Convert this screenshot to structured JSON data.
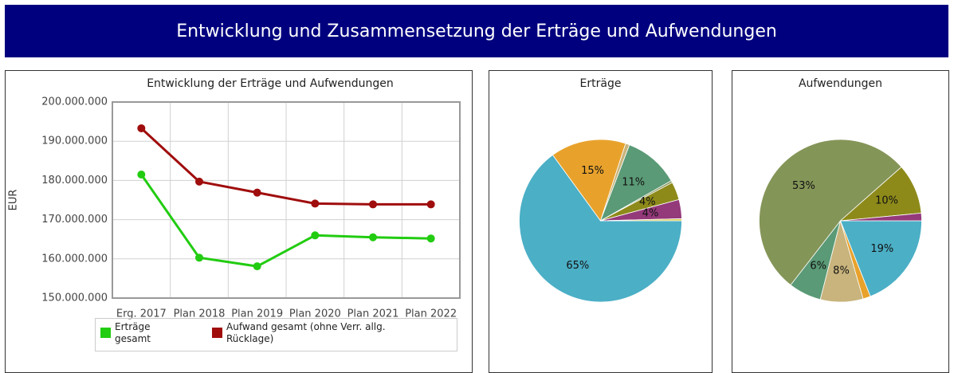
{
  "header": {
    "title": "Entwicklung und Zusammensetzung der Erträge und Aufwendungen"
  },
  "chart_data": [
    {
      "type": "line",
      "title": "Entwicklung der Erträge und Aufwendungen",
      "y_label": "EUR",
      "categories": [
        "Erg. 2017",
        "Plan 2018",
        "Plan 2019",
        "Plan 2020",
        "Plan 2021",
        "Plan 2022"
      ],
      "series": [
        {
          "name": "Erträge gesamt",
          "color": "#22cc11",
          "values": [
            181500000,
            160300000,
            158100000,
            166000000,
            165500000,
            165200000
          ]
        },
        {
          "name": "Aufwand gesamt (ohne Verr. allg. Rücklage)",
          "color": "#a00d0d",
          "values": [
            193300000,
            179700000,
            176900000,
            174100000,
            173900000,
            173900000
          ]
        }
      ],
      "ylim": [
        150000000,
        200000000
      ],
      "yticks": [
        {
          "value": 150000000,
          "label": "150.000.000"
        },
        {
          "value": 160000000,
          "label": "160.000.000"
        },
        {
          "value": 170000000,
          "label": "170.000.000"
        },
        {
          "value": 180000000,
          "label": "180.000.000"
        },
        {
          "value": 190000000,
          "label": "190.000.000"
        },
        {
          "value": 200000000,
          "label": "200.000.000"
        }
      ],
      "grid": true
    },
    {
      "type": "pie",
      "title": "Erträge",
      "values": [
        65,
        15,
        0.8,
        11,
        0.4,
        3.6,
        3.8,
        0.4
      ],
      "value_labels": [
        "65%",
        "15%",
        null,
        "11%",
        null,
        "4%",
        "4%",
        null
      ],
      "colors": [
        "#4bafc6",
        "#e8a22c",
        "#c8b47c",
        "#5a9a76",
        "#849558",
        "#8d8a1a",
        "#94397a",
        "#d8c84a"
      ]
    },
    {
      "type": "pie",
      "title": "Aufwendungen",
      "values": [
        19,
        1.5,
        8.5,
        6.5,
        53,
        10,
        1.5
      ],
      "value_labels": [
        "19%",
        null,
        "8%",
        "6%",
        "53%",
        "10%",
        null
      ],
      "colors": [
        "#4bafc6",
        "#e8a22c",
        "#c8b47c",
        "#5a9a76",
        "#849558",
        "#8d8a1a",
        "#94397a"
      ]
    }
  ]
}
